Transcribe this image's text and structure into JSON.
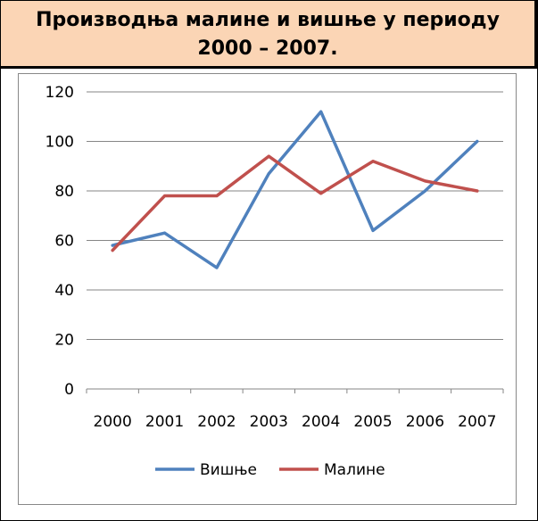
{
  "title": {
    "line1": "Производња малине и вишње у периоду",
    "line2": "2000 – 2007."
  },
  "colors": {
    "title_bg": "#fbd5b5",
    "series_visnje": "#4f81bd",
    "series_maline": "#c0504d",
    "grid": "#868686"
  },
  "chart_data": {
    "type": "line",
    "categories": [
      "2000",
      "2001",
      "2002",
      "2003",
      "2004",
      "2005",
      "2006",
      "2007"
    ],
    "series": [
      {
        "name": "Вишње",
        "values": [
          58,
          63,
          49,
          87,
          112,
          64,
          80,
          100
        ]
      },
      {
        "name": "Малине",
        "values": [
          56,
          78,
          78,
          94,
          79,
          92,
          84,
          80
        ]
      }
    ],
    "ylim": [
      0,
      120
    ],
    "yticks": [
      "0",
      "20",
      "40",
      "60",
      "80",
      "100",
      "120"
    ],
    "grid": true,
    "legend": "bottom"
  }
}
